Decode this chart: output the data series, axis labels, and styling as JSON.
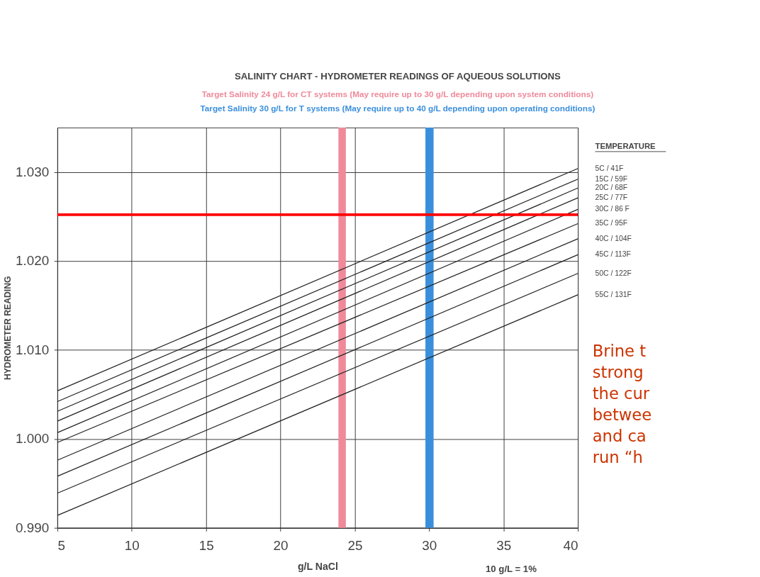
{
  "chart_data": {
    "type": "line",
    "title": "SALINITY CHART - HYDROMETER READINGS OF AQUEOUS SOLUTIONS",
    "subtitle": [
      "Target Salinity 24 g/L for CT systems (May require up to 30 g/L depending upon system conditions)",
      "Target Salinity 30 g/L for T systems (May require up to 40 g/L depending upon operating conditions)"
    ],
    "xlabel": "g/L NaCl",
    "ylabel": "HYDROMETER READING",
    "legend_title": "TEMPERATURE",
    "x": [
      5,
      40
    ],
    "series": [
      {
        "name": "5C / 41F",
        "color": "#222222",
        "values": [
          1.0054,
          1.0304
        ]
      },
      {
        "name": "15C / 59F",
        "color": "#222222",
        "values": [
          1.0042,
          1.0292
        ]
      },
      {
        "name": "20C / 68F",
        "color": "#222222",
        "values": [
          1.0031,
          1.0282
        ]
      },
      {
        "name": "25C / 77F",
        "color": "#222222",
        "values": [
          1.002,
          1.0271
        ]
      },
      {
        "name": "30C / 86 F",
        "color": "#222222",
        "values": [
          1.0007,
          1.0258
        ]
      },
      {
        "name": "35C / 95F",
        "color": "#222222",
        "values": [
          0.9996,
          1.0242
        ]
      },
      {
        "name": "40C / 104F",
        "color": "#222222",
        "values": [
          0.9976,
          1.0225
        ]
      },
      {
        "name": "45C / 113F",
        "color": "#222222",
        "values": [
          0.9958,
          1.0207
        ]
      },
      {
        "name": "50C / 122F",
        "color": "#222222",
        "values": [
          0.9939,
          1.0186
        ]
      },
      {
        "name": "55C / 131F",
        "color": "#222222",
        "values": [
          0.9914,
          1.0162
        ]
      }
    ],
    "xlim": [
      5,
      40
    ],
    "xticks": [
      5,
      10,
      15,
      20,
      25,
      30,
      35,
      40
    ],
    "ylim": [
      0.99,
      1.035
    ],
    "yticks": [
      {
        "value": 0.99,
        "label": "0.990"
      },
      {
        "value": 1.0,
        "label": "1.000"
      },
      {
        "value": 1.01,
        "label": "1.010"
      },
      {
        "value": 1.02,
        "label": "1.020"
      },
      {
        "value": 1.03,
        "label": "1.030"
      }
    ],
    "bands": [
      {
        "axis": "x",
        "from": 23.9,
        "to": 24.4,
        "color": "#f08a9a"
      },
      {
        "axis": "x",
        "from": 29.75,
        "to": 30.3,
        "color": "#3a8fdd"
      }
    ],
    "ref_lines": [
      {
        "axis": "y",
        "value": 1.0252,
        "color": "#ff0000"
      }
    ],
    "annotations": [
      "10 g/L = 1%",
      "Brine t",
      "strong",
      "the cur",
      "betwee",
      "and ca",
      "run “h"
    ],
    "grid": true,
    "legend": "right",
    "marker": "none",
    "line_style": "solid"
  }
}
